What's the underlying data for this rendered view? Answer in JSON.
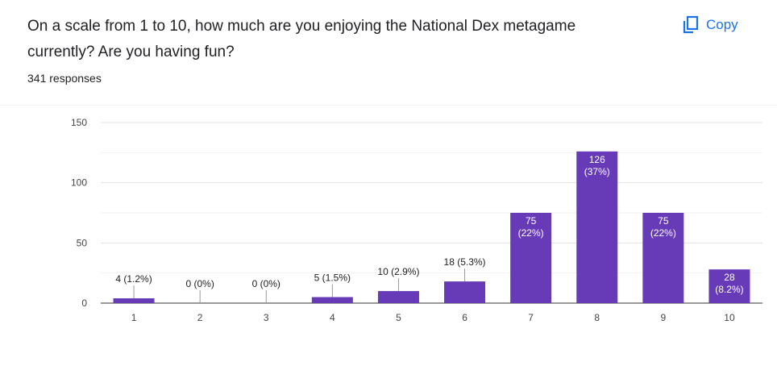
{
  "question": {
    "title": "On a scale from 1 to 10, how much are you enjoying the National Dex metagame currently? Are you having fun?",
    "response_count": "341 responses"
  },
  "toolbar": {
    "copy_label": "Copy",
    "copy_icon": "copy-icon"
  },
  "colors": {
    "bar": "#673ab7",
    "accent": "#1a73e8",
    "gridline": "#e0e0e0"
  },
  "chart_data": {
    "type": "bar",
    "categories": [
      "1",
      "2",
      "3",
      "4",
      "5",
      "6",
      "7",
      "8",
      "9",
      "10"
    ],
    "values": [
      4,
      0,
      0,
      5,
      10,
      18,
      75,
      126,
      75,
      28
    ],
    "data_labels": [
      "4 (1.2%)",
      "0 (0%)",
      "0 (0%)",
      "5 (1.5%)",
      "10 (2.9%)",
      "18 (5.3%)",
      "75 (22%)",
      "126 (37%)",
      "75 (22%)",
      "28 (8.2%)"
    ],
    "yticks": [
      0,
      50,
      100,
      150
    ],
    "ylim": [
      0,
      150
    ],
    "title": "",
    "xlabel": "",
    "ylabel": "",
    "grid": true
  }
}
